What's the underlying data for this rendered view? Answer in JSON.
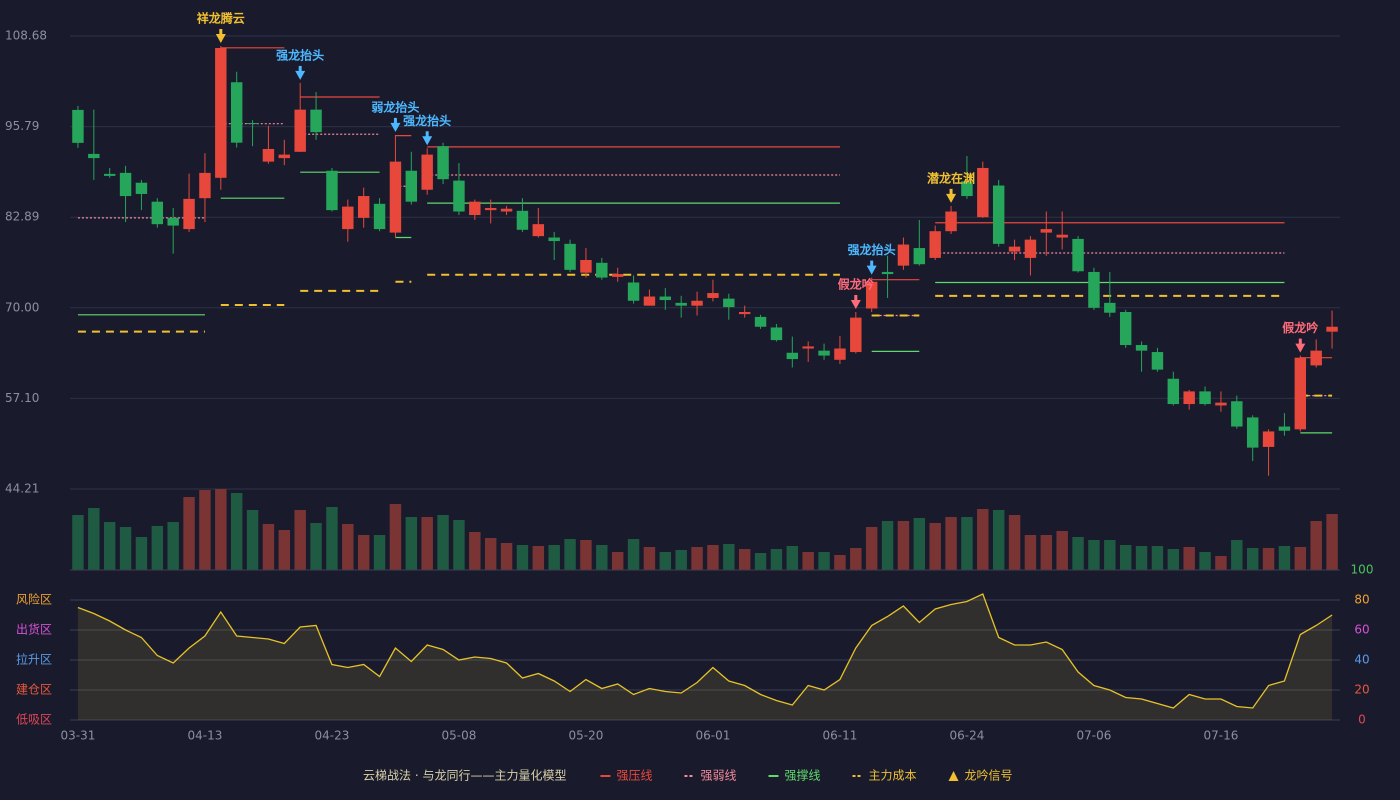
{
  "chart_data": {
    "type": "candlestick",
    "title": "云梯战法 · 与龙同行——主力量化模型",
    "categories": [
      "03-31",
      null,
      null,
      null,
      null,
      null,
      null,
      null,
      "04-13",
      null,
      null,
      null,
      null,
      null,
      null,
      null,
      "04-23",
      null,
      null,
      null,
      null,
      null,
      null,
      null,
      "05-08",
      null,
      null,
      null,
      null,
      null,
      null,
      null,
      "05-20",
      null,
      null,
      null,
      null,
      null,
      null,
      null,
      "06-01",
      null,
      null,
      null,
      null,
      null,
      null,
      null,
      "06-11",
      null,
      null,
      null,
      null,
      null,
      null,
      null,
      "06-24",
      null,
      null,
      null,
      null,
      null,
      null,
      null,
      "07-06",
      null,
      null,
      null,
      null,
      null,
      null,
      null,
      "07-16",
      null,
      null,
      null,
      null,
      null,
      null,
      null
    ],
    "open": [
      98.16,
      91.9,
      89.06,
      89.2,
      87.8,
      85.1,
      82.8,
      81.2,
      85.6,
      88.5,
      102.1,
      96.3,
      90.8,
      91.3,
      92.2,
      98.2,
      89.5,
      81.2,
      82.8,
      84.8,
      80.7,
      89.5,
      86.8,
      93.0,
      88.1,
      83.2,
      83.9,
      83.7,
      83.8,
      80.2,
      80.0,
      79.1,
      75.0,
      76.4,
      74.4,
      73.6,
      70.3,
      71.6,
      70.7,
      70.3,
      71.4,
      71.3,
      69.1,
      68.7,
      67.2,
      63.6,
      64.2,
      63.9,
      62.6,
      63.7,
      69.9,
      75.1,
      76.0,
      78.5,
      77.1,
      80.9,
      88.0,
      82.9,
      87.4,
      78.0,
      77.1,
      80.7,
      80.0,
      79.8,
      75.1,
      70.7,
      69.4,
      64.7,
      63.7,
      59.9,
      56.3,
      58.1,
      56.1,
      56.7,
      54.4,
      50.2,
      53.1,
      52.7,
      61.8,
      66.6
    ],
    "close": [
      93.47,
      91.3,
      88.77,
      85.9,
      86.2,
      81.9,
      81.7,
      85.5,
      89.2,
      106.97,
      93.5,
      96.2,
      92.6,
      91.8,
      98.2,
      95.0,
      83.9,
      84.4,
      85.9,
      81.2,
      90.8,
      85.1,
      91.8,
      88.3,
      83.7,
      85.1,
      84.2,
      84.1,
      81.1,
      81.9,
      79.5,
      75.4,
      76.8,
      74.3,
      74.8,
      71.0,
      71.6,
      71.1,
      70.3,
      71.0,
      72.1,
      70.1,
      69.4,
      67.3,
      65.4,
      62.7,
      64.5,
      63.2,
      64.2,
      68.6,
      73.7,
      74.8,
      79.0,
      76.2,
      80.9,
      83.7,
      85.9,
      89.9,
      79.1,
      78.7,
      79.7,
      81.2,
      80.4,
      75.2,
      70.0,
      69.3,
      64.7,
      63.9,
      61.2,
      56.3,
      58.1,
      56.3,
      56.5,
      53.1,
      50.1,
      52.4,
      52.5,
      62.9,
      63.9,
      67.3
    ],
    "high": [
      98.73,
      98.2,
      89.9,
      90.2,
      88.2,
      85.6,
      84.2,
      89.1,
      92.0,
      107.26,
      103.6,
      96.7,
      95.9,
      93.9,
      102.0,
      100.7,
      89.9,
      85.4,
      87.1,
      85.6,
      94.6,
      92.2,
      92.7,
      93.5,
      90.6,
      85.4,
      85.4,
      84.5,
      85.6,
      84.2,
      80.8,
      79.7,
      78.5,
      77.1,
      75.7,
      74.6,
      72.6,
      72.8,
      71.7,
      72.3,
      74.0,
      72.0,
      70.3,
      69.0,
      67.7,
      65.9,
      65.2,
      64.9,
      66.0,
      69.4,
      74.3,
      77.4,
      80.0,
      82.5,
      81.7,
      84.5,
      91.6,
      90.8,
      88.2,
      79.7,
      80.2,
      83.7,
      83.7,
      80.2,
      75.7,
      75.1,
      69.7,
      65.2,
      64.3,
      60.9,
      58.3,
      58.8,
      58.1,
      57.5,
      54.7,
      52.7,
      55.0,
      63.2,
      65.5,
      69.6
    ],
    "low": [
      92.76,
      88.2,
      88.5,
      82.2,
      83.9,
      81.4,
      77.7,
      80.8,
      82.2,
      86.8,
      92.8,
      93.0,
      90.5,
      90.3,
      92.2,
      93.9,
      83.7,
      79.4,
      81.4,
      80.9,
      80.0,
      84.7,
      86.1,
      87.6,
      83.2,
      82.5,
      82.0,
      83.2,
      80.8,
      80.0,
      76.8,
      75.1,
      74.3,
      74.0,
      73.7,
      70.6,
      70.3,
      69.7,
      68.6,
      68.9,
      70.9,
      68.3,
      68.6,
      67.0,
      65.2,
      61.5,
      62.3,
      62.6,
      62.0,
      63.5,
      69.4,
      71.4,
      75.4,
      76.0,
      76.8,
      80.5,
      85.5,
      82.8,
      78.7,
      76.8,
      74.6,
      77.4,
      78.3,
      75.0,
      69.7,
      68.7,
      64.3,
      60.9,
      60.9,
      56.1,
      55.5,
      56.1,
      55.2,
      52.8,
      48.2,
      46.1,
      51.8,
      52.4,
      61.5,
      64.2
    ],
    "up_color": "#e8483c",
    "down_color": "#26a65b",
    "ylim": [
      44.21,
      108.68
    ],
    "yticks": [
      108.68,
      95.79,
      82.89,
      {
        "value": 70,
        "label": "70.00"
      },
      {
        "value": 57.1,
        "label": "57.10"
      },
      44.21
    ],
    "grid": true,
    "levels": [
      {
        "name": "强压线",
        "color": "#e8483c",
        "style": "solid",
        "segments": [
          {
            "from": 9,
            "to": 13,
            "value": 107.0
          },
          {
            "from": 14,
            "to": 19,
            "value": 100.0
          },
          {
            "from": 20,
            "to": 21,
            "value": 94.5
          },
          {
            "from": 22,
            "to": 48,
            "value": 92.9
          },
          {
            "from": 50,
            "to": 53,
            "value": 74.0
          },
          {
            "from": 54,
            "to": 76,
            "value": 82.1
          },
          {
            "from": 77,
            "to": 79,
            "value": 62.9
          }
        ]
      },
      {
        "name": "强弱线",
        "color": "#f28a9a",
        "style": "dotted",
        "segments": [
          {
            "from": 0,
            "to": 8,
            "value": 82.8
          },
          {
            "from": 9,
            "to": 13,
            "value": 96.2
          },
          {
            "from": 14,
            "to": 19,
            "value": 94.7
          },
          {
            "from": 20,
            "to": 21,
            "value": 87.3
          },
          {
            "from": 22,
            "to": 48,
            "value": 88.9
          },
          {
            "from": 50,
            "to": 53,
            "value": 68.9
          },
          {
            "from": 54,
            "to": 76,
            "value": 77.8
          },
          {
            "from": 77,
            "to": 79,
            "value": 57.5
          }
        ]
      },
      {
        "name": "强撑线",
        "color": "#5fd96b",
        "style": "solid",
        "segments": [
          {
            "from": 0,
            "to": 8,
            "value": 69.0
          },
          {
            "from": 9,
            "to": 13,
            "value": 85.6
          },
          {
            "from": 14,
            "to": 19,
            "value": 89.3
          },
          {
            "from": 20,
            "to": 21,
            "value": 80.0
          },
          {
            "from": 22,
            "to": 48,
            "value": 84.9
          },
          {
            "from": 50,
            "to": 53,
            "value": 63.8
          },
          {
            "from": 54,
            "to": 76,
            "value": 73.6
          },
          {
            "from": 77,
            "to": 79,
            "value": 52.2
          }
        ]
      },
      {
        "name": "主力成本",
        "color": "#f0c030",
        "style": "dashed",
        "segments": [
          {
            "from": 0,
            "to": 8,
            "value": 66.6
          },
          {
            "from": 9,
            "to": 13,
            "value": 70.4
          },
          {
            "from": 14,
            "to": 19,
            "value": 72.4
          },
          {
            "from": 20,
            "to": 21,
            "value": 73.7
          },
          {
            "from": 22,
            "to": 48,
            "value": 74.7
          },
          {
            "from": 50,
            "to": 53,
            "value": 68.9
          },
          {
            "from": 54,
            "to": 76,
            "value": 71.7
          },
          {
            "from": 77,
            "to": 79,
            "value": 57.5
          }
        ]
      }
    ],
    "signal_legend": "龙吟信号",
    "signal_color": "#f0c030",
    "signals": [
      {
        "index": 9,
        "label": "祥龙腾云",
        "color": "#f0c030"
      },
      {
        "index": 14,
        "label": "强龙抬头",
        "color": "#4db8ff"
      },
      {
        "index": 20,
        "label": "弱龙抬头",
        "color": "#4db8ff"
      },
      {
        "index": 22,
        "label": "强龙抬头",
        "color": "#4db8ff"
      },
      {
        "index": 49,
        "label": "假龙吟",
        "color": "#ff6b7a"
      },
      {
        "index": 50,
        "label": "强龙抬头",
        "color": "#4db8ff"
      },
      {
        "index": 55,
        "label": "潜龙在渊",
        "color": "#f0c030"
      },
      {
        "index": 77,
        "label": "假龙吟",
        "color": "#ff6b7a"
      }
    ],
    "volume": {
      "values": [
        55,
        62,
        48,
        43,
        33,
        44,
        48,
        73,
        80,
        81,
        77,
        60,
        46,
        40,
        60,
        47,
        63,
        46,
        35,
        35,
        66,
        53,
        53,
        55,
        50,
        38,
        32,
        27,
        25,
        24,
        25,
        31,
        30,
        25,
        18,
        31,
        23,
        18,
        20,
        23,
        25,
        26,
        21,
        17,
        21,
        24,
        18,
        18,
        15,
        22,
        43,
        49,
        49,
        52,
        47,
        53,
        53,
        61,
        60,
        55,
        35,
        35,
        39,
        33,
        30,
        30,
        25,
        24,
        24,
        21,
        23,
        18,
        14,
        30,
        22,
        22,
        24,
        23,
        49,
        56
      ],
      "ylim": [
        0,
        81
      ],
      "up_color": "#7a3434",
      "down_color": "#1f5a42"
    },
    "oscillator": {
      "values": [
        75,
        71,
        66,
        60,
        55,
        43,
        38,
        48,
        56,
        72,
        56,
        55,
        54,
        51,
        62,
        63,
        37,
        35,
        37,
        29,
        48,
        39,
        50,
        47,
        40,
        42,
        41,
        38,
        28,
        31,
        26,
        19,
        27,
        21,
        24,
        17,
        21,
        19,
        18,
        25,
        35,
        26,
        23,
        17,
        13,
        10,
        23,
        20,
        27,
        48,
        63,
        69,
        76,
        65,
        74,
        77,
        79,
        84,
        55,
        50,
        50,
        52,
        47,
        32,
        23,
        20,
        15,
        14,
        11,
        8,
        17,
        14,
        14,
        9,
        8,
        23,
        26,
        57,
        63,
        70
      ],
      "color": "#e6c229",
      "ylim": [
        0,
        100
      ],
      "yticks": [
        0,
        20,
        40,
        60,
        80,
        100
      ],
      "ytick_colors": [
        "#e04656",
        "#e8583c",
        "#5a9ae8",
        "#d552d5",
        "#f0a030",
        "#4cc35a"
      ],
      "zones": [
        {
          "label": "风险区",
          "value": 80,
          "color": "#f0a030"
        },
        {
          "label": "出货区",
          "value": 60,
          "color": "#d552d5"
        },
        {
          "label": "拉升区",
          "value": 40,
          "color": "#5a9ae8"
        },
        {
          "label": "建仓区",
          "value": 20,
          "color": "#e8583c"
        },
        {
          "label": "低吸区",
          "value": 0,
          "color": "#e04656"
        }
      ]
    }
  }
}
